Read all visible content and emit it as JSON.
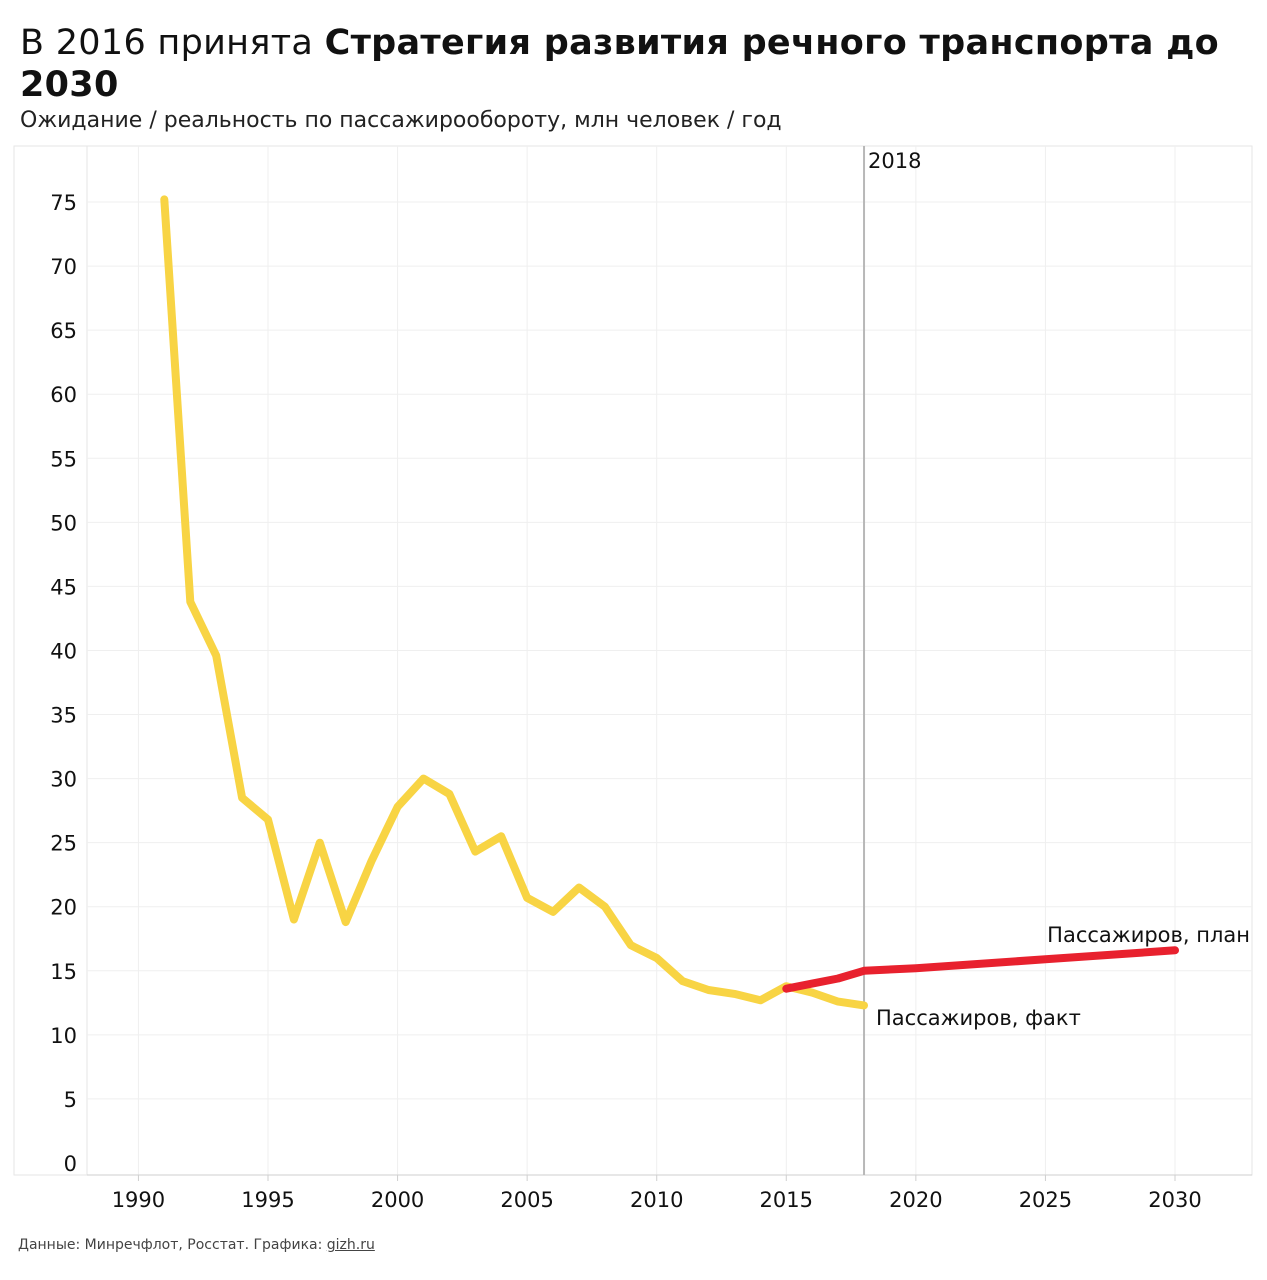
{
  "header": {
    "title_normal": "В 2016 принята ",
    "title_bold": "Стратегия развития речного транспорта до 2030",
    "subtitle": "Ожидание / реальность по пассажирообороту, млн человек / год"
  },
  "footer": {
    "text": "Данные: Минречфлот, Росстат. Графика: ",
    "link": "gizh.ru"
  },
  "chart_data": {
    "type": "line",
    "title": "",
    "xlabel": "",
    "ylabel": "",
    "xlim": [
      1988,
      2033
    ],
    "ylim": [
      0,
      78
    ],
    "x_ticks": [
      1990,
      1995,
      2000,
      2005,
      2010,
      2015,
      2020,
      2025,
      2030
    ],
    "y_ticks": [
      0,
      5,
      10,
      15,
      20,
      25,
      30,
      35,
      40,
      45,
      50,
      55,
      60,
      65,
      70,
      75
    ],
    "grid": true,
    "reference_line": {
      "x": 2018,
      "label": "2018"
    },
    "series": [
      {
        "name": "Пассажиров, факт",
        "color": "#f8d444",
        "x": [
          1991,
          1992,
          1993,
          1994,
          1995,
          1996,
          1997,
          1998,
          1999,
          2000,
          2001,
          2002,
          2003,
          2004,
          2005,
          2006,
          2007,
          2008,
          2009,
          2010,
          2011,
          2012,
          2013,
          2014,
          2015,
          2016,
          2017,
          2018
        ],
        "values": [
          75.2,
          43.8,
          39.6,
          28.5,
          26.8,
          19.0,
          25.0,
          18.8,
          23.6,
          27.8,
          30.0,
          28.8,
          24.3,
          25.5,
          20.7,
          19.6,
          21.5,
          20.0,
          17.0,
          16.0,
          14.2,
          13.5,
          13.2,
          12.7,
          13.8,
          13.3,
          12.6,
          12.3
        ]
      },
      {
        "name": "Пассажиров, план",
        "color": "#e8212e",
        "x": [
          2015,
          2016,
          2017,
          2018,
          2020,
          2025,
          2030
        ],
        "values": [
          13.6,
          14.0,
          14.4,
          15.0,
          15.2,
          15.9,
          16.6
        ]
      }
    ]
  }
}
